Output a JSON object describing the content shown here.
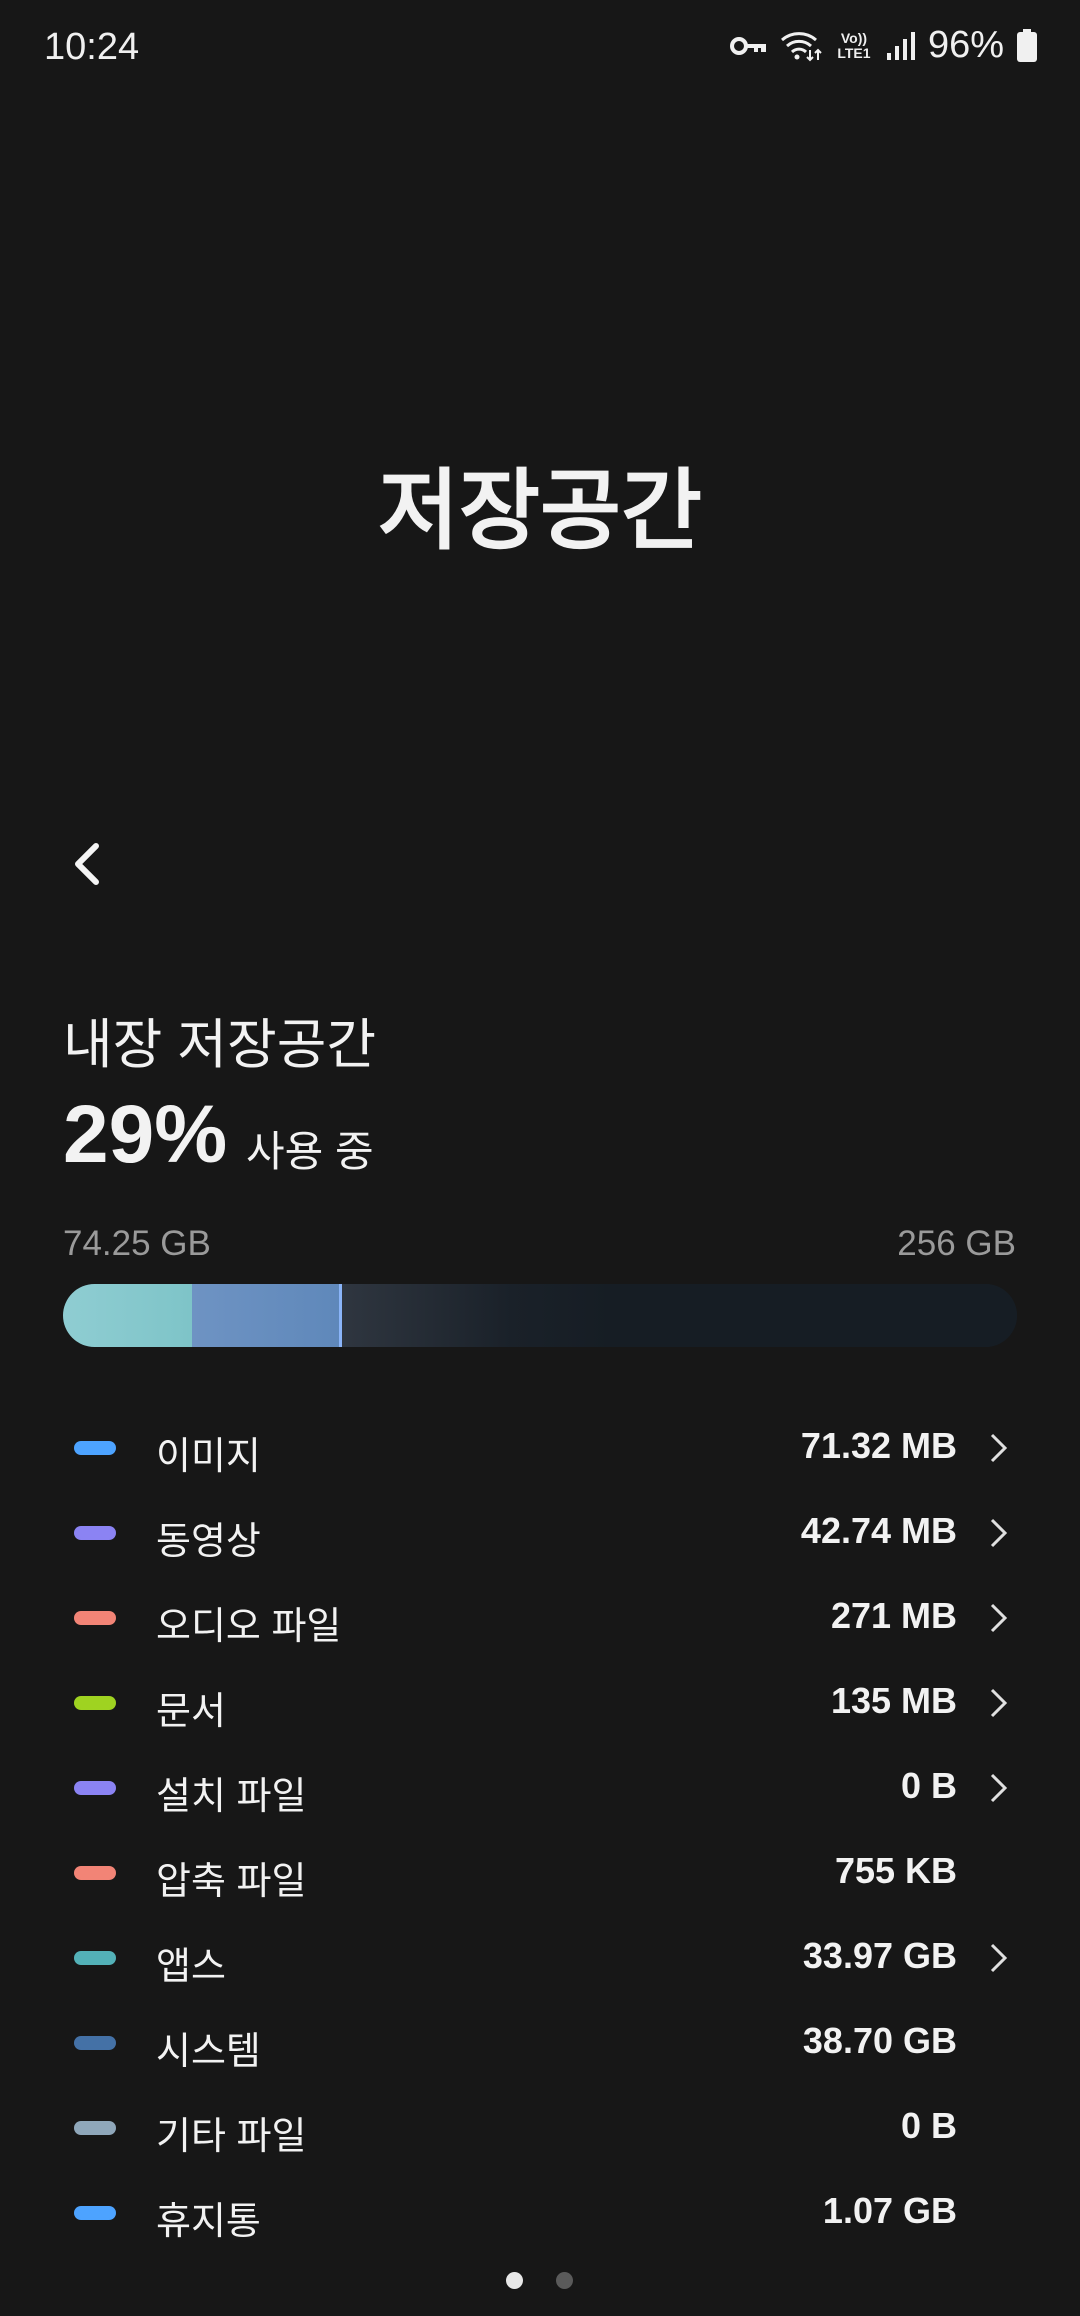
{
  "status_bar": {
    "time": "10:24",
    "network_label": "Vo)) LTE1",
    "battery": "96%",
    "icons": [
      "key-icon",
      "wifi-icon",
      "volte-icon",
      "signal-icon",
      "battery-icon"
    ]
  },
  "header": {
    "title": "저장공간"
  },
  "storage": {
    "title": "내장 저장공간",
    "percent": "29%",
    "percent_suffix": "사용 중",
    "used": "74.25 GB",
    "total": "256 GB",
    "bar": {
      "apps_gb": 33.97,
      "system_gb": 38.7,
      "total_gb": 256,
      "colors": {
        "apps": "#7ec4c8",
        "system": "#5f88ba",
        "free": "#161d24"
      }
    }
  },
  "categories": [
    {
      "label": "이미지",
      "value": "71.32 MB",
      "color": "#4da3ff",
      "chevron": true
    },
    {
      "label": "동영상",
      "value": "42.74 MB",
      "color": "#8b83f3",
      "chevron": true
    },
    {
      "label": "오디오 파일",
      "value": "271 MB",
      "color": "#f28476",
      "chevron": true
    },
    {
      "label": "문서",
      "value": "135 MB",
      "color": "#9fd321",
      "chevron": true
    },
    {
      "label": "설치 파일",
      "value": "0 B",
      "color": "#8b83f3",
      "chevron": true
    },
    {
      "label": "압축 파일",
      "value": "755 KB",
      "color": "#f28476",
      "chevron": false
    },
    {
      "label": "앱스",
      "value": "33.97 GB",
      "color": "#53b1b8",
      "chevron": true
    },
    {
      "label": "시스템",
      "value": "38.70 GB",
      "color": "#4471a6",
      "chevron": false
    },
    {
      "label": "기타 파일",
      "value": "0 B",
      "color": "#8fa7ba",
      "chevron": false
    },
    {
      "label": "휴지통",
      "value": "1.07 GB",
      "color": "#4da3ff",
      "chevron": false
    }
  ],
  "pager": {
    "pages": 2,
    "current": 1
  }
}
